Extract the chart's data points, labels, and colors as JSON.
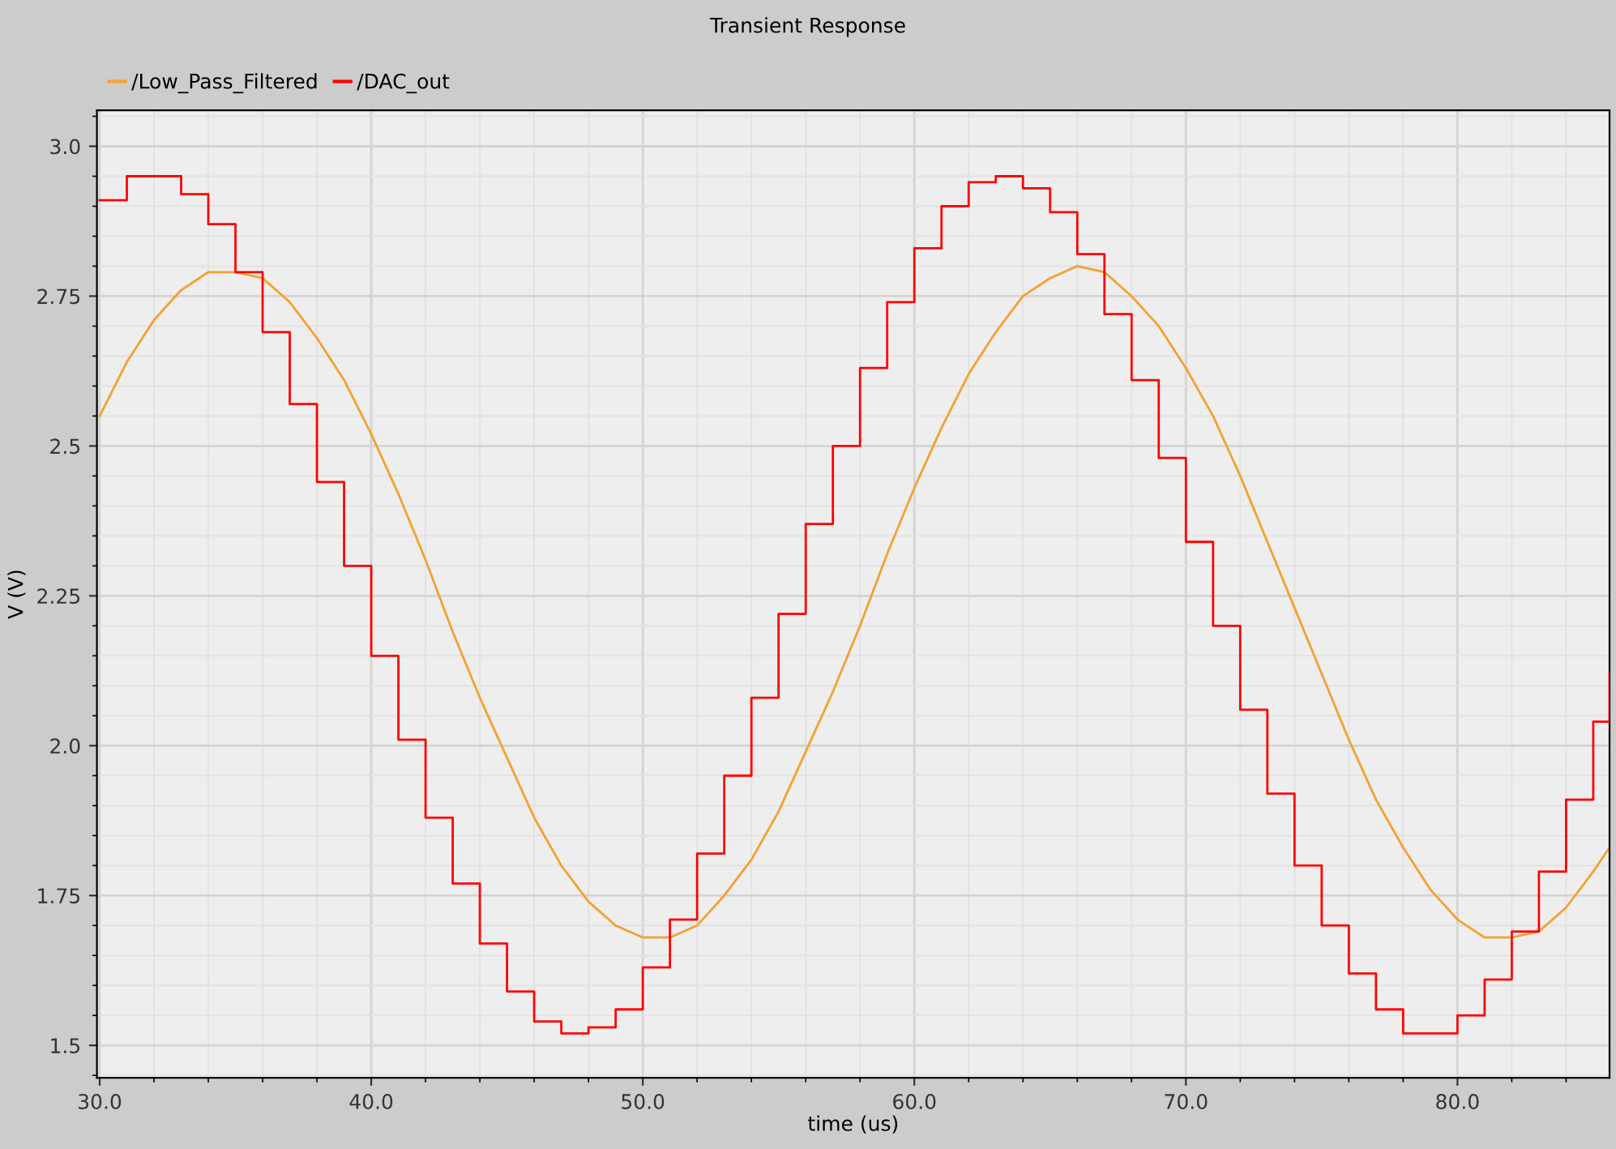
{
  "chart_data": {
    "type": "line",
    "title": "Transient Response",
    "xlabel": "time (us)",
    "ylabel": "V (V)",
    "x": [
      30,
      31,
      32,
      33,
      34,
      35,
      36,
      37,
      38,
      39,
      40,
      41,
      42,
      43,
      44,
      45,
      46,
      47,
      48,
      49,
      50,
      51,
      52,
      53,
      54,
      55,
      56,
      57,
      58,
      59,
      60,
      61,
      62,
      63,
      64,
      65,
      66,
      67,
      68,
      69,
      70,
      71,
      72,
      73,
      74,
      75,
      76,
      77,
      78,
      79,
      80,
      81,
      82,
      83,
      84,
      85,
      85.6
    ],
    "series": [
      {
        "name": "/Low_Pass_Filtered",
        "color": "#f5a030",
        "values": [
          2.55,
          2.64,
          2.71,
          2.76,
          2.79,
          2.79,
          2.78,
          2.74,
          2.68,
          2.61,
          2.52,
          2.42,
          2.31,
          2.19,
          2.08,
          1.98,
          1.88,
          1.8,
          1.74,
          1.7,
          1.68,
          1.68,
          1.7,
          1.75,
          1.81,
          1.89,
          1.99,
          2.09,
          2.2,
          2.32,
          2.43,
          2.53,
          2.62,
          2.69,
          2.75,
          2.78,
          2.8,
          2.79,
          2.75,
          2.7,
          2.63,
          2.55,
          2.45,
          2.34,
          2.23,
          2.12,
          2.01,
          1.91,
          1.83,
          1.76,
          1.71,
          1.68,
          1.68,
          1.69,
          1.73,
          1.79,
          1.83
        ]
      },
      {
        "name": "/DAC_out",
        "color": "#ff0000",
        "type": "step",
        "values": [
          2.91,
          2.95,
          2.95,
          2.92,
          2.87,
          2.79,
          2.69,
          2.57,
          2.44,
          2.3,
          2.15,
          2.01,
          1.88,
          1.77,
          1.67,
          1.59,
          1.54,
          1.52,
          1.53,
          1.56,
          1.63,
          1.71,
          1.82,
          1.95,
          2.08,
          2.22,
          2.37,
          2.5,
          2.63,
          2.74,
          2.83,
          2.9,
          2.94,
          2.95,
          2.93,
          2.89,
          2.82,
          2.72,
          2.61,
          2.48,
          2.34,
          2.2,
          2.06,
          1.92,
          1.8,
          1.7,
          1.62,
          1.56,
          1.52,
          1.52,
          1.55,
          1.61,
          1.69,
          1.79,
          1.91,
          2.04,
          2.12
        ]
      }
    ],
    "xlim": [
      29.9,
      85.6
    ],
    "ylim": [
      1.446,
      3.06
    ],
    "xticks": [
      {
        "value": 30,
        "label": "30.0"
      },
      {
        "value": 40,
        "label": "40.0"
      },
      {
        "value": 50,
        "label": "50.0"
      },
      {
        "value": 60,
        "label": "60.0"
      },
      {
        "value": 70,
        "label": "70.0"
      },
      {
        "value": 80,
        "label": "80.0"
      }
    ],
    "yticks": [
      1.5,
      1.75,
      {
        "value": 2.0,
        "label": "2.0"
      },
      2.25,
      2.5,
      2.75,
      {
        "value": 3.0,
        "label": "3.0"
      }
    ],
    "grid": true,
    "legend": "top left"
  }
}
